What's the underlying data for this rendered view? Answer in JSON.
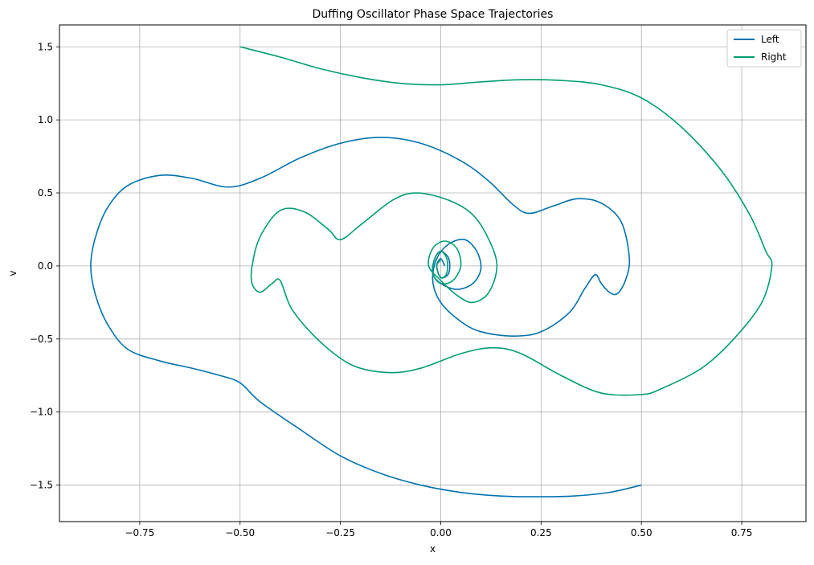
{
  "chart_data": {
    "type": "line",
    "title": "Duffing Oscillator Phase Space Trajectories",
    "xlabel": "x",
    "ylabel": "v",
    "xlim": [
      -0.95,
      0.91
    ],
    "ylim": [
      -1.75,
      1.65
    ],
    "xticks": [
      -0.75,
      -0.5,
      -0.25,
      0.0,
      0.25,
      0.5,
      0.75
    ],
    "xtick_labels": [
      "−0.75",
      "−0.50",
      "−0.25",
      "0.00",
      "0.25",
      "0.50",
      "0.75"
    ],
    "yticks": [
      -1.5,
      -1.0,
      -0.5,
      0.0,
      0.5,
      1.0,
      1.5
    ],
    "ytick_labels": [
      "−1.5",
      "−1.0",
      "−0.5",
      "0.0",
      "0.5",
      "1.0",
      "1.5"
    ],
    "grid": true,
    "legend_position": "top-right",
    "series": [
      {
        "name": "Left",
        "color": "#0072b2",
        "points": [
          [
            0.5,
            -1.5
          ],
          [
            0.42,
            -1.55
          ],
          [
            0.33,
            -1.575
          ],
          [
            0.25,
            -1.58
          ],
          [
            0.15,
            -1.575
          ],
          [
            0.05,
            -1.55
          ],
          [
            -0.05,
            -1.5
          ],
          [
            -0.15,
            -1.42
          ],
          [
            -0.25,
            -1.3
          ],
          [
            -0.35,
            -1.12
          ],
          [
            -0.45,
            -0.93
          ],
          [
            -0.5,
            -0.8
          ],
          [
            -0.55,
            -0.75
          ],
          [
            -0.62,
            -0.7
          ],
          [
            -0.7,
            -0.65
          ],
          [
            -0.78,
            -0.57
          ],
          [
            -0.83,
            -0.4
          ],
          [
            -0.86,
            -0.2
          ],
          [
            -0.872,
            0.0
          ],
          [
            -0.86,
            0.2
          ],
          [
            -0.83,
            0.4
          ],
          [
            -0.78,
            0.55
          ],
          [
            -0.7,
            0.62
          ],
          [
            -0.62,
            0.6
          ],
          [
            -0.53,
            0.54
          ],
          [
            -0.45,
            0.6
          ],
          [
            -0.35,
            0.74
          ],
          [
            -0.25,
            0.84
          ],
          [
            -0.15,
            0.88
          ],
          [
            -0.05,
            0.84
          ],
          [
            0.05,
            0.72
          ],
          [
            0.12,
            0.58
          ],
          [
            0.18,
            0.42
          ],
          [
            0.22,
            0.36
          ],
          [
            0.28,
            0.41
          ],
          [
            0.34,
            0.46
          ],
          [
            0.4,
            0.43
          ],
          [
            0.45,
            0.3
          ],
          [
            0.47,
            0.05
          ],
          [
            0.46,
            -0.1
          ],
          [
            0.44,
            -0.19
          ],
          [
            0.42,
            -0.18
          ],
          [
            0.4,
            -0.12
          ],
          [
            0.385,
            -0.06
          ],
          [
            0.36,
            -0.15
          ],
          [
            0.32,
            -0.32
          ],
          [
            0.25,
            -0.45
          ],
          [
            0.18,
            -0.48
          ],
          [
            0.1,
            -0.45
          ],
          [
            0.05,
            -0.38
          ],
          [
            0.0,
            -0.25
          ],
          [
            -0.02,
            -0.1
          ],
          [
            -0.01,
            0.05
          ],
          [
            0.02,
            0.15
          ],
          [
            0.06,
            0.18
          ],
          [
            0.09,
            0.1
          ],
          [
            0.1,
            -0.02
          ],
          [
            0.08,
            -0.12
          ],
          [
            0.04,
            -0.16
          ],
          [
            0.0,
            -0.12
          ],
          [
            -0.02,
            -0.05
          ],
          [
            -0.015,
            0.05
          ],
          [
            0.0,
            0.1
          ],
          [
            0.02,
            0.05
          ],
          [
            0.02,
            -0.05
          ],
          [
            0.0,
            -0.08
          ],
          [
            -0.01,
            0.0
          ],
          [
            0.0,
            0.05
          ],
          [
            0.01,
            0.0
          ]
        ]
      },
      {
        "name": "Right",
        "color": "#009e73",
        "points": [
          [
            -0.5,
            1.5
          ],
          [
            -0.4,
            1.43
          ],
          [
            -0.3,
            1.35
          ],
          [
            -0.2,
            1.29
          ],
          [
            -0.1,
            1.25
          ],
          [
            0.0,
            1.24
          ],
          [
            0.1,
            1.26
          ],
          [
            0.2,
            1.275
          ],
          [
            0.3,
            1.27
          ],
          [
            0.4,
            1.24
          ],
          [
            0.5,
            1.15
          ],
          [
            0.6,
            0.95
          ],
          [
            0.7,
            0.65
          ],
          [
            0.77,
            0.35
          ],
          [
            0.81,
            0.1
          ],
          [
            0.825,
            0.0
          ],
          [
            0.8,
            -0.25
          ],
          [
            0.73,
            -0.5
          ],
          [
            0.65,
            -0.7
          ],
          [
            0.55,
            -0.84
          ],
          [
            0.5,
            -0.88
          ],
          [
            0.4,
            -0.87
          ],
          [
            0.3,
            -0.75
          ],
          [
            0.2,
            -0.6
          ],
          [
            0.13,
            -0.56
          ],
          [
            0.05,
            -0.6
          ],
          [
            -0.05,
            -0.7
          ],
          [
            -0.13,
            -0.73
          ],
          [
            -0.22,
            -0.68
          ],
          [
            -0.3,
            -0.52
          ],
          [
            -0.37,
            -0.3
          ],
          [
            -0.4,
            -0.1
          ],
          [
            -0.42,
            -0.12
          ],
          [
            -0.45,
            -0.18
          ],
          [
            -0.47,
            -0.12
          ],
          [
            -0.47,
            0.0
          ],
          [
            -0.45,
            0.2
          ],
          [
            -0.4,
            0.38
          ],
          [
            -0.34,
            0.37
          ],
          [
            -0.28,
            0.25
          ],
          [
            -0.25,
            0.18
          ],
          [
            -0.2,
            0.28
          ],
          [
            -0.12,
            0.45
          ],
          [
            -0.06,
            0.5
          ],
          [
            0.02,
            0.45
          ],
          [
            0.08,
            0.35
          ],
          [
            0.12,
            0.18
          ],
          [
            0.14,
            0.0
          ],
          [
            0.12,
            -0.18
          ],
          [
            0.08,
            -0.25
          ],
          [
            0.04,
            -0.2
          ],
          [
            0.0,
            -0.1
          ],
          [
            -0.03,
            0.0
          ],
          [
            -0.02,
            0.12
          ],
          [
            0.01,
            0.17
          ],
          [
            0.04,
            0.12
          ],
          [
            0.05,
            0.0
          ],
          [
            0.03,
            -0.1
          ],
          [
            0.0,
            -0.12
          ],
          [
            -0.02,
            -0.05
          ],
          [
            -0.015,
            0.05
          ],
          [
            0.0,
            0.1
          ],
          [
            0.015,
            0.05
          ],
          [
            0.015,
            -0.05
          ],
          [
            0.0,
            -0.08
          ],
          [
            -0.01,
            0.0
          ],
          [
            0.0,
            0.04
          ]
        ]
      }
    ]
  }
}
